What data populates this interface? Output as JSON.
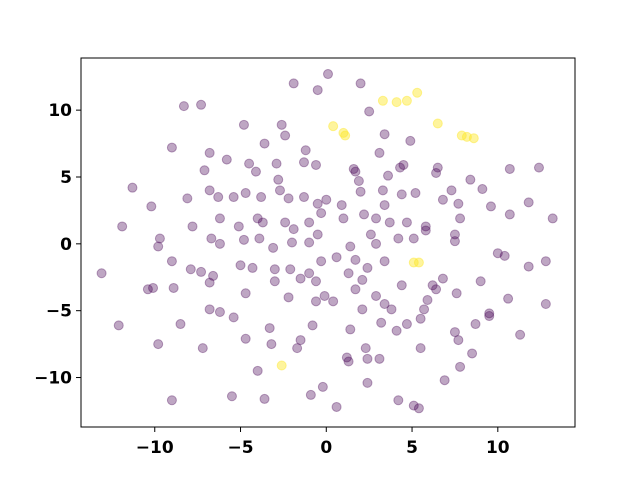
{
  "chart_data": {
    "type": "scatter",
    "xlim": [
      -14.3,
      14.5
    ],
    "ylim": [
      -13.7,
      13.9
    ],
    "xticks": [
      {
        "value": -10,
        "label": "−10"
      },
      {
        "value": -5,
        "label": "−5"
      },
      0,
      5,
      10
    ],
    "yticks": [
      {
        "value": -10,
        "label": "−10"
      },
      {
        "value": -5,
        "label": "−5"
      },
      0,
      5,
      10
    ],
    "grid": false,
    "series": [
      {
        "color": "#440154",
        "opacity": 0.35,
        "x": [
          0.1,
          -1.9,
          2.0,
          -0.5,
          2.5,
          3.4,
          -4.8,
          -7.3,
          -8.3,
          -2.6,
          -2.4,
          -3.6,
          -1.2,
          -1.3,
          -0.6,
          1.6,
          3.1,
          4.9,
          4.5,
          4.3,
          1.9,
          3.6,
          6.5,
          6.4,
          9.1,
          10.7,
          12.4,
          -9.0,
          -6.8,
          -7.1,
          -5.8,
          -4.5,
          -2.9,
          -11.3,
          -10.2,
          -11.9,
          -9.7,
          -9.8,
          -8.1,
          -7.8,
          -6.8,
          -6.3,
          -5.4,
          -4.7,
          -3.8,
          -2.7,
          -2.2,
          -1.3,
          -0.5,
          0.0,
          0.9,
          2.0,
          3.3,
          3.4,
          4.4,
          5.2,
          6.8,
          7.7,
          7.8,
          9.6,
          11.8,
          13.2,
          4.7,
          3.7,
          2.9,
          2.2,
          1.0,
          -0.3,
          -1.0,
          -1.9,
          -3.7,
          -5.1,
          -6.2,
          -6.7,
          -4.8,
          -3.9,
          -3.1,
          -2.0,
          -1.0,
          -0.5,
          0.6,
          1.4,
          2.6,
          2.9,
          4.2,
          5.1,
          5.8,
          7.5,
          10.0,
          10.4,
          12.8,
          11.8,
          6.8,
          6.2,
          6.4,
          7.6,
          9.0,
          10.6,
          9.5,
          9.5,
          12.8,
          8.7,
          7.5,
          7.7,
          8.5,
          7.8,
          6.9,
          11.3,
          1.7,
          2.4,
          3.4,
          1.3,
          -0.3,
          -1.0,
          -2.1,
          -3.0,
          -4.3,
          -6.2,
          -6.6,
          -7.3,
          -9.0,
          -10.4,
          -10.1,
          -8.9,
          -7.9,
          -8.5,
          -6.8,
          -6.2,
          -5.4,
          -4.7,
          -3.0,
          -2.2,
          -1.5,
          -0.6,
          -0.1,
          0.4,
          -0.6,
          -0.8,
          -1.5,
          -1.7,
          -3.3,
          -4.7,
          -4.0,
          -3.6,
          -5.5,
          -9.0,
          -9.8,
          -7.2,
          -0.9,
          -0.2,
          0.6,
          1.3,
          1.2,
          2.3,
          2.4,
          3.1,
          2.1,
          1.7,
          2.1,
          2.9,
          3.4,
          4.4,
          3.8,
          4.7,
          5.7,
          5.5,
          5.5,
          3.2,
          4.1,
          4.2,
          5.1,
          5.4,
          2.4,
          1.4,
          -12.1,
          -13.1,
          -6.8,
          -4.1,
          -2.8,
          1.7,
          7.3,
          7.5,
          5.8,
          8.4,
          10.7,
          5.9,
          -5.0,
          -2.4,
          -4.0,
          -3.2
        ],
        "values": [
          12.7,
          12.0,
          12.0,
          11.5,
          9.9,
          8.2,
          8.9,
          10.4,
          10.3,
          8.9,
          8.1,
          7.5,
          7.0,
          6.1,
          5.9,
          5.6,
          6.8,
          7.7,
          5.9,
          5.7,
          4.7,
          5.1,
          5.7,
          5.3,
          4.1,
          5.6,
          5.7,
          7.2,
          6.8,
          5.5,
          6.3,
          6.0,
          6.0,
          4.2,
          2.8,
          1.3,
          0.4,
          -0.2,
          3.4,
          1.3,
          4.0,
          3.5,
          3.5,
          3.8,
          3.5,
          4.0,
          3.4,
          3.5,
          3.0,
          3.3,
          2.9,
          3.9,
          4.0,
          2.9,
          3.7,
          3.8,
          3.3,
          3.0,
          1.9,
          2.8,
          3.1,
          1.9,
          1.6,
          1.6,
          1.9,
          2.2,
          1.9,
          2.3,
          1.6,
          1.1,
          1.6,
          1.3,
          1.9,
          0.4,
          0.3,
          0.4,
          -0.3,
          0.1,
          0.1,
          0.7,
          -1.0,
          -0.2,
          0.7,
          0.0,
          0.4,
          0.4,
          1.0,
          0.2,
          -0.7,
          -0.9,
          -1.3,
          -1.7,
          -2.6,
          -3.1,
          -3.4,
          -3.7,
          -2.8,
          -4.1,
          -5.2,
          -5.4,
          -4.5,
          -6.0,
          -6.6,
          -7.2,
          -8.2,
          -9.2,
          -10.2,
          -6.8,
          -1.2,
          -1.8,
          -1.3,
          -2.2,
          -1.3,
          -2.2,
          -1.9,
          -1.9,
          -1.8,
          0.0,
          -2.4,
          -2.1,
          -1.3,
          -3.4,
          -3.3,
          -3.3,
          -1.9,
          -6.0,
          -4.9,
          -5.1,
          -5.5,
          -3.7,
          -2.8,
          -4.0,
          -2.6,
          -2.8,
          -3.9,
          -4.3,
          -4.3,
          -6.1,
          -7.2,
          -7.8,
          -6.3,
          -7.1,
          -9.5,
          -11.6,
          -11.4,
          -11.7,
          -7.5,
          -7.8,
          -11.3,
          -10.7,
          -12.2,
          -8.8,
          -8.5,
          -7.8,
          -8.6,
          -8.6,
          -4.9,
          -3.4,
          -2.7,
          -3.9,
          -4.5,
          -3.1,
          -4.9,
          -6.0,
          -4.9,
          -5.6,
          -7.8,
          -5.9,
          -6.5,
          -11.7,
          -12.1,
          -12.3,
          -10.4,
          -6.4,
          -6.1,
          -2.2,
          -2.9,
          5.4,
          4.8,
          5.4,
          4.0,
          0.7,
          1.3,
          4.8,
          2.2,
          -4.2,
          -1.6,
          1.6,
          1.9,
          -7.5
        ]
      },
      {
        "color": "#fde725",
        "opacity": 0.45,
        "x": [
          0.4,
          1.0,
          1.1,
          3.3,
          4.1,
          4.7,
          5.3,
          6.5,
          7.9,
          8.2,
          8.6,
          5.1,
          5.4,
          -2.6
        ],
        "values": [
          8.8,
          8.3,
          8.1,
          10.7,
          10.6,
          10.7,
          11.3,
          9.0,
          8.1,
          8.0,
          7.9,
          -1.4,
          -1.4,
          -9.1
        ]
      }
    ]
  }
}
